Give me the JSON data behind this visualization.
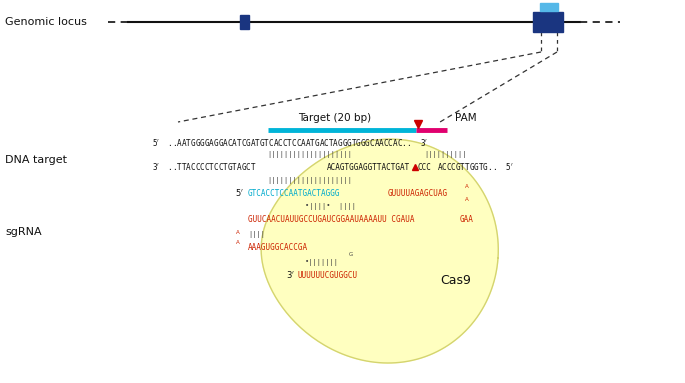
{
  "bg_color": "#ffffff",
  "genomic_locus_label": "Genomic locus",
  "dna_target_label": "DNA target",
  "sgrna_label": "sgRNA",
  "cas9_label": "Cas9",
  "target_label": "Target (20 bp)",
  "pam_label": "PAM",
  "yellow_blob_color": "#ffffc0",
  "yellow_blob_edge": "#d4d470",
  "cyan_line_color": "#00b4d8",
  "magenta_line_color": "#e0006e",
  "red_arrow_color": "#cc0000",
  "dark_blue": "#1a3580",
  "light_blue": "#55b8e8",
  "cyan_text": "#00aacc",
  "red_text": "#cc2200",
  "black_text": "#111111",
  "gray_text": "#444444"
}
